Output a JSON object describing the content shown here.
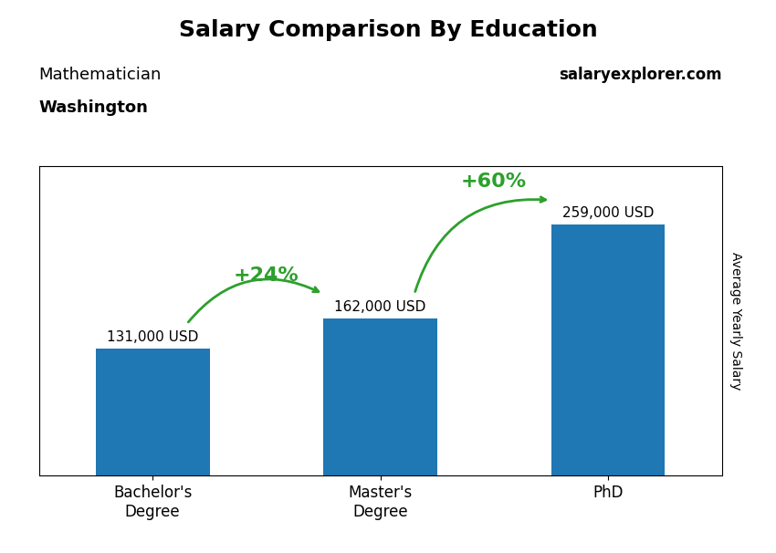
{
  "chart_data": {
    "type": "bar",
    "title": "Salary Comparison By Education",
    "subtitle": [
      "Mathematician",
      "Washington",
      "salaryexplorer.com"
    ],
    "y_label": "Average Yearly Salary",
    "categories": [
      "Bachelor's\nDegree",
      "Master's\nDegree",
      "PhD"
    ],
    "values": [
      131000,
      162000,
      259000
    ],
    "value_labels": [
      "131,000 USD",
      "162,000 USD",
      "259,000 USD"
    ],
    "data_labels": true,
    "annotations": [
      "+24%",
      "+60%"
    ],
    "ylim": [
      0,
      320000
    ],
    "yticks": [],
    "tick_labels": "x",
    "grid": false
  }
}
